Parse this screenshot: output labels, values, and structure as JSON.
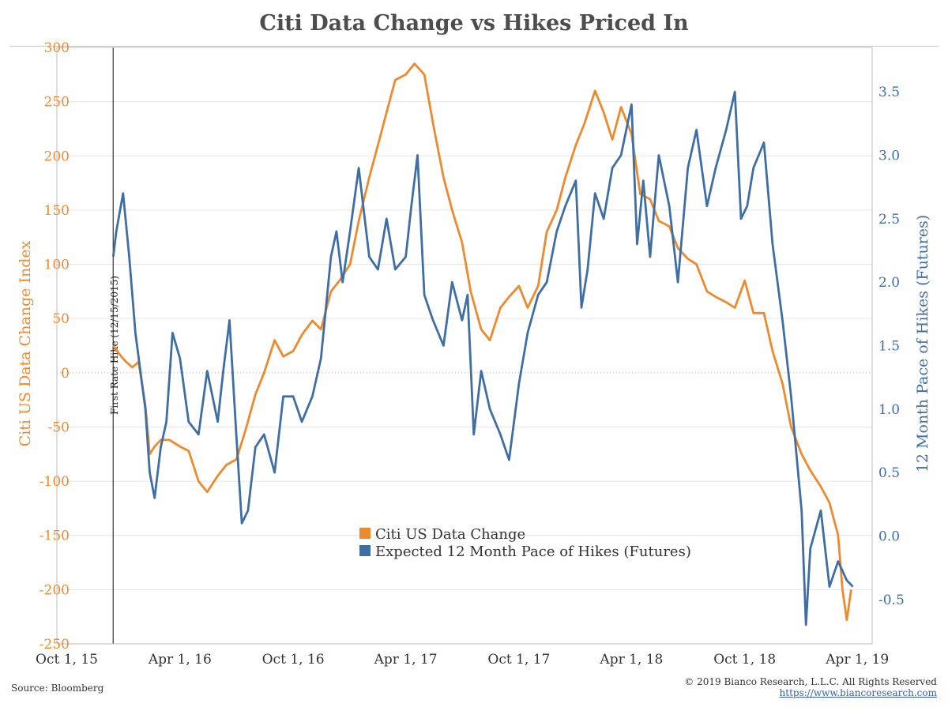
{
  "title": "Citi Data Change vs Hikes Priced In",
  "source": "Source: Bloomberg",
  "copyright": "© 2019 Bianco Research, L.L.C. All Rights Reserved",
  "website": "https://www.biancoresearch.com",
  "colors": {
    "citi": "#ee8a2e",
    "hikes": "#3f6ea4",
    "grid": "#e6e6e6",
    "axis": "#bdbdbd"
  },
  "chart_data": {
    "type": "line",
    "title": "Citi Data Change vs Hikes Priced In",
    "x_ticks": [
      "Oct 1, 15",
      "Apr 1, 16",
      "Oct 1, 16",
      "Apr 1, 17",
      "Oct 1, 17",
      "Apr 1, 18",
      "Oct 1, 18",
      "Apr 1, 19"
    ],
    "x_range": [
      "2015-09-15",
      "2019-04-25"
    ],
    "y_left": {
      "label": "Citi US Data Change Index",
      "range": [
        -250,
        300
      ],
      "ticks": [
        300,
        250,
        200,
        150,
        100,
        50,
        0,
        -50,
        -100,
        -150,
        -200,
        -250
      ]
    },
    "y_right": {
      "label": "12 Month Pace of Hikes (Futures)",
      "range": [
        -0.85,
        3.85
      ],
      "ticks": [
        3.5,
        3.0,
        2.5,
        2.0,
        1.5,
        1.0,
        0.5,
        0.0,
        -0.5
      ]
    },
    "zero_line": "dotted at 0 on left axis",
    "annotation": {
      "label": "First Rate Hike (12/15/2015)",
      "date": "2015-12-15"
    },
    "legend_position": "center",
    "series": [
      {
        "name": "Citi US Data Change",
        "axis": "left",
        "points": [
          [
            "2015-12-15",
            25
          ],
          [
            "2015-12-28",
            15
          ],
          [
            "2016-01-05",
            10
          ],
          [
            "2016-01-15",
            5
          ],
          [
            "2016-01-25",
            10
          ],
          [
            "2016-02-05",
            -30
          ],
          [
            "2016-02-12",
            -75
          ],
          [
            "2016-02-20",
            -68
          ],
          [
            "2016-03-01",
            -62
          ],
          [
            "2016-03-15",
            -62
          ],
          [
            "2016-04-01",
            -68
          ],
          [
            "2016-04-15",
            -72
          ],
          [
            "2016-05-01",
            -100
          ],
          [
            "2016-05-15",
            -110
          ],
          [
            "2016-06-01",
            -95
          ],
          [
            "2016-06-15",
            -85
          ],
          [
            "2016-07-01",
            -80
          ],
          [
            "2016-07-15",
            -55
          ],
          [
            "2016-08-01",
            -20
          ],
          [
            "2016-08-15",
            0
          ],
          [
            "2016-09-01",
            30
          ],
          [
            "2016-09-15",
            15
          ],
          [
            "2016-10-01",
            20
          ],
          [
            "2016-10-15",
            35
          ],
          [
            "2016-11-01",
            48
          ],
          [
            "2016-11-15",
            40
          ],
          [
            "2016-12-01",
            75
          ],
          [
            "2016-12-15",
            85
          ],
          [
            "2017-01-01",
            100
          ],
          [
            "2017-01-15",
            140
          ],
          [
            "2017-02-01",
            180
          ],
          [
            "2017-02-15",
            210
          ],
          [
            "2017-03-01",
            240
          ],
          [
            "2017-03-15",
            270
          ],
          [
            "2017-04-01",
            275
          ],
          [
            "2017-04-15",
            285
          ],
          [
            "2017-05-01",
            275
          ],
          [
            "2017-05-15",
            230
          ],
          [
            "2017-06-01",
            180
          ],
          [
            "2017-06-15",
            150
          ],
          [
            "2017-07-01",
            120
          ],
          [
            "2017-07-15",
            75
          ],
          [
            "2017-08-01",
            40
          ],
          [
            "2017-08-15",
            30
          ],
          [
            "2017-09-01",
            60
          ],
          [
            "2017-09-15",
            70
          ],
          [
            "2017-10-01",
            80
          ],
          [
            "2017-10-15",
            60
          ],
          [
            "2017-11-01",
            80
          ],
          [
            "2017-11-15",
            130
          ],
          [
            "2017-12-01",
            150
          ],
          [
            "2017-12-15",
            180
          ],
          [
            "2018-01-01",
            210
          ],
          [
            "2018-01-15",
            230
          ],
          [
            "2018-02-01",
            260
          ],
          [
            "2018-02-15",
            240
          ],
          [
            "2018-03-01",
            215
          ],
          [
            "2018-03-15",
            245
          ],
          [
            "2018-04-01",
            220
          ],
          [
            "2018-04-15",
            165
          ],
          [
            "2018-05-01",
            160
          ],
          [
            "2018-05-15",
            140
          ],
          [
            "2018-06-01",
            135
          ],
          [
            "2018-06-15",
            115
          ],
          [
            "2018-07-01",
            105
          ],
          [
            "2018-07-15",
            100
          ],
          [
            "2018-08-01",
            75
          ],
          [
            "2018-08-15",
            70
          ],
          [
            "2018-09-01",
            65
          ],
          [
            "2018-09-15",
            60
          ],
          [
            "2018-10-01",
            85
          ],
          [
            "2018-10-15",
            55
          ],
          [
            "2018-11-01",
            55
          ],
          [
            "2018-11-15",
            20
          ],
          [
            "2018-12-01",
            -10
          ],
          [
            "2018-12-15",
            -50
          ],
          [
            "2019-01-01",
            -75
          ],
          [
            "2019-01-15",
            -90
          ],
          [
            "2019-02-01",
            -105
          ],
          [
            "2019-02-15",
            -120
          ],
          [
            "2019-03-01",
            -150
          ],
          [
            "2019-03-08",
            -200
          ],
          [
            "2019-03-15",
            -228
          ],
          [
            "2019-03-22",
            -200
          ]
        ]
      },
      {
        "name": "Expected 12 Month Pace of Hikes (Futures)",
        "axis": "right",
        "points": [
          [
            "2015-12-15",
            2.2
          ],
          [
            "2015-12-20",
            2.4
          ],
          [
            "2015-12-31",
            2.7
          ],
          [
            "2016-01-10",
            2.2
          ],
          [
            "2016-01-20",
            1.6
          ],
          [
            "2016-02-05",
            1.0
          ],
          [
            "2016-02-12",
            0.5
          ],
          [
            "2016-02-20",
            0.3
          ],
          [
            "2016-03-01",
            0.7
          ],
          [
            "2016-03-10",
            0.9
          ],
          [
            "2016-03-20",
            1.6
          ],
          [
            "2016-04-01",
            1.4
          ],
          [
            "2016-04-15",
            0.9
          ],
          [
            "2016-05-01",
            0.8
          ],
          [
            "2016-05-15",
            1.3
          ],
          [
            "2016-06-01",
            0.9
          ],
          [
            "2016-06-10",
            1.3
          ],
          [
            "2016-06-20",
            1.7
          ],
          [
            "2016-07-01",
            0.8
          ],
          [
            "2016-07-10",
            0.1
          ],
          [
            "2016-07-20",
            0.2
          ],
          [
            "2016-08-01",
            0.7
          ],
          [
            "2016-08-15",
            0.8
          ],
          [
            "2016-09-01",
            0.5
          ],
          [
            "2016-09-15",
            1.1
          ],
          [
            "2016-10-01",
            1.1
          ],
          [
            "2016-10-15",
            0.9
          ],
          [
            "2016-11-01",
            1.1
          ],
          [
            "2016-11-15",
            1.4
          ],
          [
            "2016-12-01",
            2.2
          ],
          [
            "2016-12-10",
            2.4
          ],
          [
            "2016-12-20",
            2.0
          ],
          [
            "2017-01-01",
            2.4
          ],
          [
            "2017-01-15",
            2.9
          ],
          [
            "2017-02-01",
            2.2
          ],
          [
            "2017-02-15",
            2.1
          ],
          [
            "2017-03-01",
            2.5
          ],
          [
            "2017-03-15",
            2.1
          ],
          [
            "2017-04-01",
            2.2
          ],
          [
            "2017-04-10",
            2.6
          ],
          [
            "2017-04-20",
            3.0
          ],
          [
            "2017-05-01",
            1.9
          ],
          [
            "2017-05-15",
            1.7
          ],
          [
            "2017-06-01",
            1.5
          ],
          [
            "2017-06-15",
            2.0
          ],
          [
            "2017-07-01",
            1.7
          ],
          [
            "2017-07-10",
            1.9
          ],
          [
            "2017-07-20",
            0.8
          ],
          [
            "2017-08-01",
            1.3
          ],
          [
            "2017-08-15",
            1.0
          ],
          [
            "2017-09-01",
            0.8
          ],
          [
            "2017-09-15",
            0.6
          ],
          [
            "2017-10-01",
            1.2
          ],
          [
            "2017-10-15",
            1.6
          ],
          [
            "2017-11-01",
            1.9
          ],
          [
            "2017-11-15",
            2.0
          ],
          [
            "2017-12-01",
            2.4
          ],
          [
            "2017-12-15",
            2.6
          ],
          [
            "2018-01-01",
            2.8
          ],
          [
            "2018-01-10",
            1.8
          ],
          [
            "2018-01-20",
            2.1
          ],
          [
            "2018-02-01",
            2.7
          ],
          [
            "2018-02-15",
            2.5
          ],
          [
            "2018-03-01",
            2.9
          ],
          [
            "2018-03-15",
            3.0
          ],
          [
            "2018-04-01",
            3.4
          ],
          [
            "2018-04-10",
            2.3
          ],
          [
            "2018-04-20",
            2.8
          ],
          [
            "2018-05-01",
            2.2
          ],
          [
            "2018-05-15",
            3.0
          ],
          [
            "2018-06-01",
            2.6
          ],
          [
            "2018-06-15",
            2.0
          ],
          [
            "2018-07-01",
            2.9
          ],
          [
            "2018-07-15",
            3.2
          ],
          [
            "2018-08-01",
            2.6
          ],
          [
            "2018-08-15",
            2.9
          ],
          [
            "2018-09-01",
            3.2
          ],
          [
            "2018-09-15",
            3.5
          ],
          [
            "2018-09-25",
            2.5
          ],
          [
            "2018-10-05",
            2.6
          ],
          [
            "2018-10-15",
            2.9
          ],
          [
            "2018-11-01",
            3.1
          ],
          [
            "2018-11-15",
            2.3
          ],
          [
            "2018-12-01",
            1.7
          ],
          [
            "2018-12-15",
            1.1
          ],
          [
            "2019-01-01",
            0.2
          ],
          [
            "2019-01-08",
            -0.7
          ],
          [
            "2019-01-15",
            -0.1
          ],
          [
            "2019-02-01",
            0.2
          ],
          [
            "2019-02-15",
            -0.4
          ],
          [
            "2019-03-01",
            -0.2
          ],
          [
            "2019-03-15",
            -0.35
          ],
          [
            "2019-03-25",
            -0.4
          ]
        ]
      }
    ]
  }
}
